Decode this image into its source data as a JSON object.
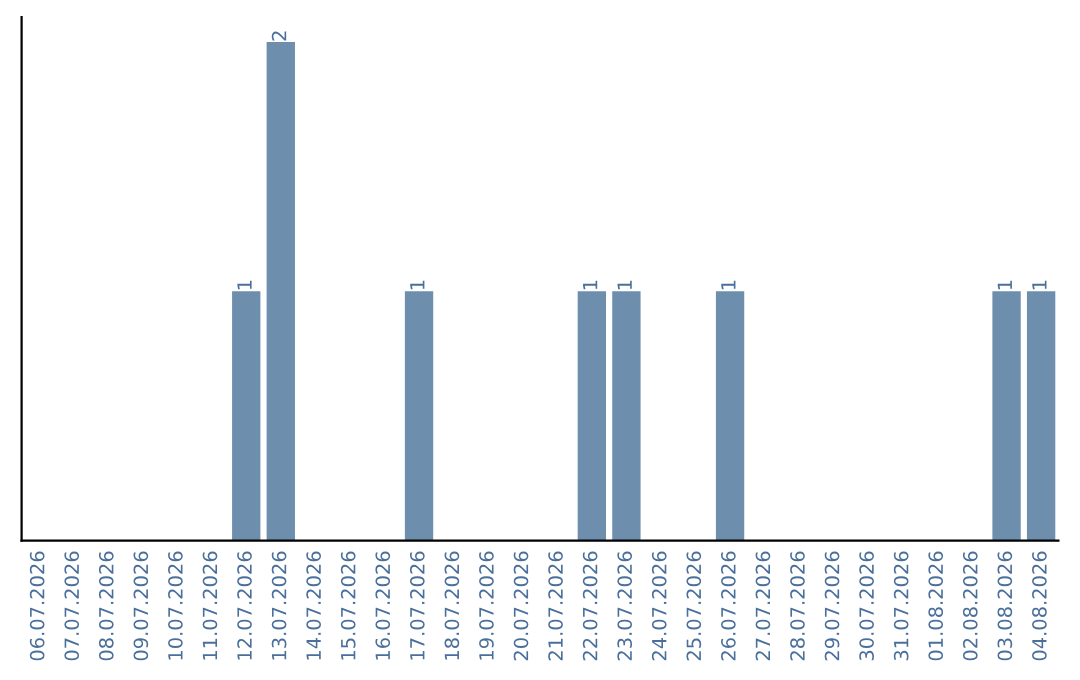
{
  "chart_data": {
    "type": "bar",
    "categories": [
      "06.07.2026",
      "07.07.2026",
      "08.07.2026",
      "09.07.2026",
      "10.07.2026",
      "11.07.2026",
      "12.07.2026",
      "13.07.2026",
      "14.07.2026",
      "15.07.2026",
      "16.07.2026",
      "17.07.2026",
      "18.07.2026",
      "19.07.2026",
      "20.07.2026",
      "21.07.2026",
      "22.07.2026",
      "23.07.2026",
      "24.07.2026",
      "25.07.2026",
      "26.07.2026",
      "27.07.2026",
      "28.07.2026",
      "29.07.2026",
      "30.07.2026",
      "31.07.2026",
      "01.08.2026",
      "02.08.2026",
      "03.08.2026",
      "04.08.2026"
    ],
    "values": [
      0,
      0,
      0,
      0,
      0,
      0,
      1,
      2,
      0,
      0,
      0,
      1,
      0,
      0,
      0,
      0,
      1,
      1,
      0,
      0,
      1,
      0,
      0,
      0,
      0,
      0,
      0,
      0,
      1,
      1
    ],
    "value_labels": [
      null,
      null,
      null,
      null,
      null,
      null,
      "1",
      "2",
      null,
      null,
      null,
      "1",
      null,
      null,
      null,
      null,
      "1",
      "1",
      null,
      null,
      "1",
      null,
      null,
      null,
      null,
      null,
      null,
      null,
      "1",
      "1"
    ],
    "color": "#6d8fad",
    "tick_labels": "x",
    "grid": false,
    "legend": false
  }
}
